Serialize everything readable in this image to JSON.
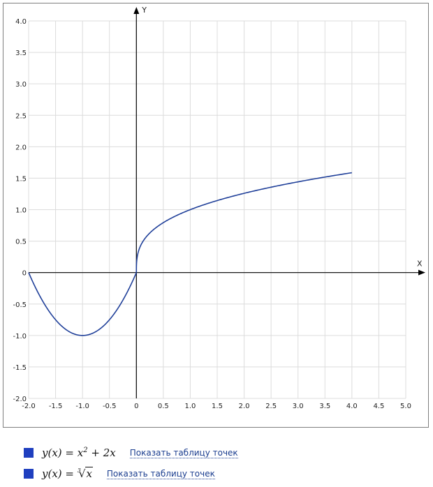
{
  "chart_data": {
    "type": "line",
    "xlabel": "X",
    "ylabel": "Y",
    "xlim": [
      -2.0,
      5.0
    ],
    "ylim": [
      -2.0,
      4.0
    ],
    "x_ticks": [
      "-2.0",
      "-1.5",
      "-1.0",
      "-0.5",
      "0",
      "0.5",
      "1.0",
      "1.5",
      "2.0",
      "2.5",
      "3.0",
      "3.5",
      "4.0",
      "4.5",
      "5.0"
    ],
    "y_ticks": [
      "4.0",
      "3.5",
      "3.0",
      "2.5",
      "2.0",
      "1.5",
      "1.0",
      "0.5",
      "0",
      "-0.5",
      "-1.0",
      "-1.5",
      "-2.0"
    ],
    "grid": true,
    "series": [
      {
        "name": "y(x) = x^2 + 2x",
        "color": "#1f3f99",
        "x": [
          -2.0,
          -1.75,
          -1.5,
          -1.25,
          -1.0,
          -0.75,
          -0.5,
          -0.25,
          0.0
        ],
        "y": [
          0.0,
          -0.4375,
          -0.75,
          -0.9375,
          -1.0,
          -0.9375,
          -0.75,
          -0.4375,
          0.0
        ]
      },
      {
        "name": "y(x) = ∛x",
        "color": "#1f3f99",
        "x": [
          0.0,
          0.01,
          0.05,
          0.125,
          0.25,
          0.5,
          1.0,
          1.5,
          2.0,
          2.5,
          3.0,
          3.5,
          4.0
        ],
        "y": [
          0.0,
          0.22,
          0.37,
          0.5,
          0.63,
          0.79,
          1.0,
          1.14,
          1.26,
          1.36,
          1.44,
          1.52,
          1.59
        ]
      }
    ]
  },
  "legend": {
    "items": [
      {
        "formula_lhs": "y(x)",
        "formula_eq": "=",
        "formula_rhs_base": "x",
        "formula_rhs_exp": "2",
        "formula_rhs_tail": "+ 2x",
        "link": "Показать таблицу точек",
        "color": "#1f3fbf"
      },
      {
        "formula_lhs": "y(x)",
        "formula_eq": "=",
        "root_index": "3",
        "root_sign": "√",
        "root_arg": "x",
        "link": "Показать таблицу точек",
        "color": "#1f3fbf"
      }
    ]
  }
}
